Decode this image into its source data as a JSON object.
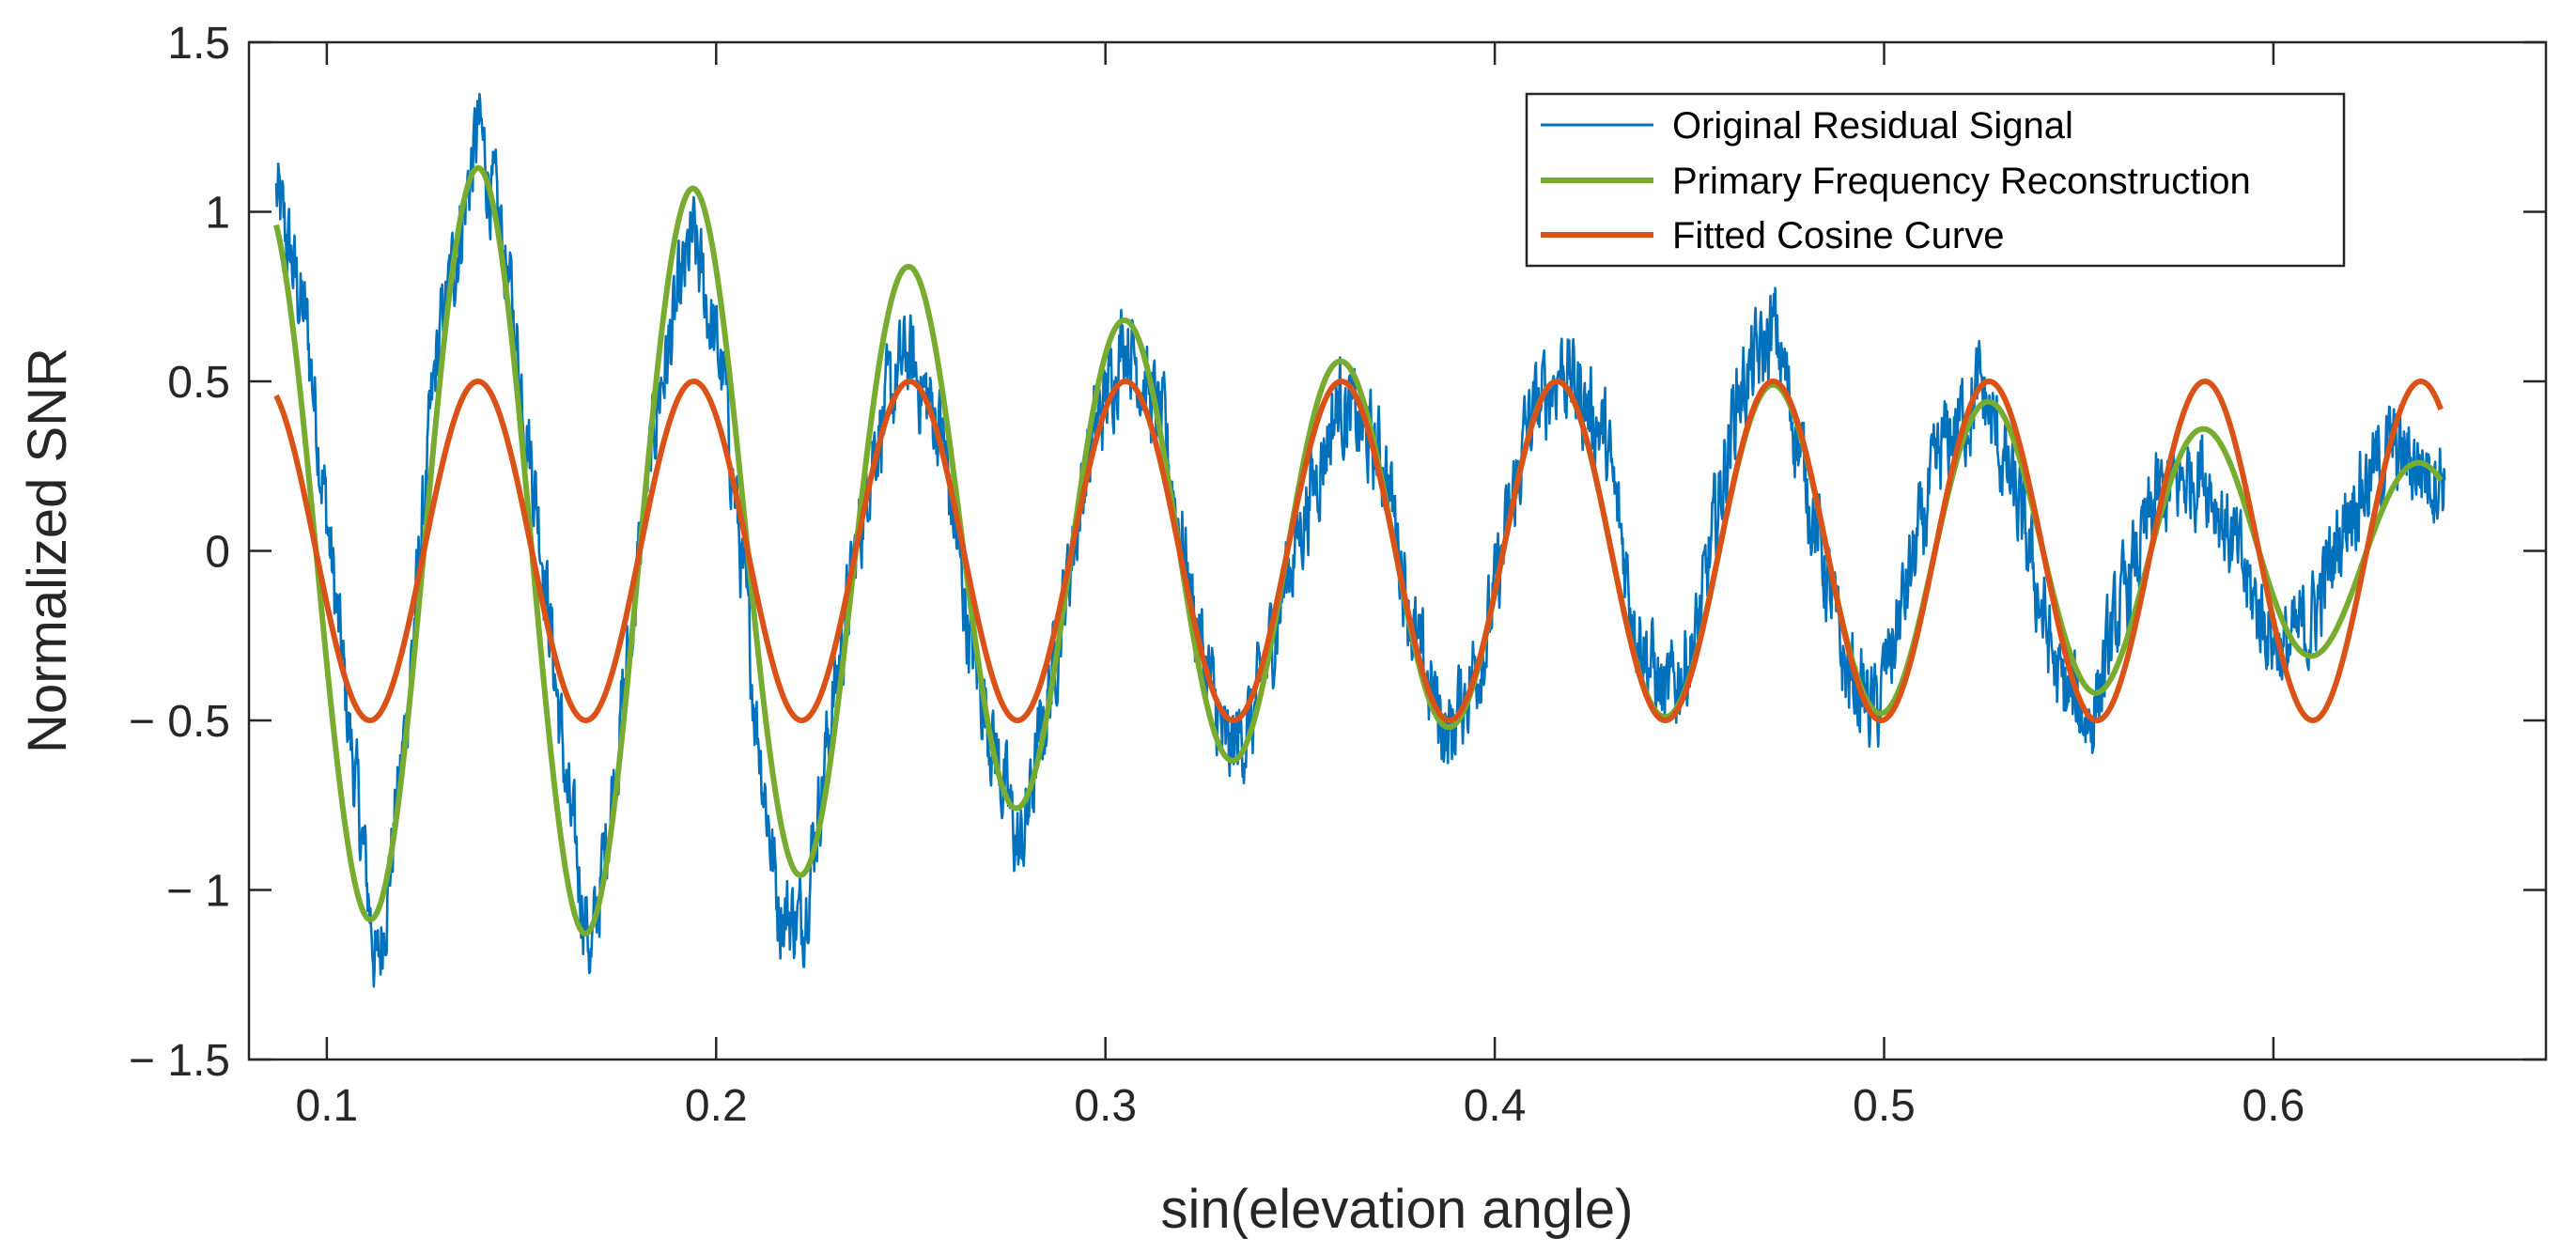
{
  "chart_data": {
    "type": "line",
    "title": "",
    "xlabel": "sin(elevation angle)",
    "ylabel": "Normalized SNR",
    "xlim": [
      0.08,
      0.67
    ],
    "ylim": [
      -1.5,
      1.5
    ],
    "xticks": [
      0.1,
      0.2,
      0.3,
      0.4,
      0.5,
      0.6
    ],
    "xtick_labels": [
      "0.1",
      "0.2",
      "0.3",
      "0.4",
      "0.5",
      "0.6"
    ],
    "yticks": [
      -1.5,
      -1,
      -0.5,
      0,
      0.5,
      1,
      1.5
    ],
    "ytick_labels": [
      "− 1.5",
      "− 1",
      "− 0.5",
      "0",
      "0.5",
      "1",
      "1.5"
    ],
    "grid": false,
    "legend_position": "top-right",
    "colors": {
      "original": "#0072BD",
      "primary": "#77AC30",
      "fitted": "#D95319",
      "axis": "#262626"
    },
    "series": [
      {
        "name": "Original Residual Signal",
        "style": "noisy",
        "x": [
          0.087,
          0.095,
          0.105,
          0.113,
          0.12,
          0.128,
          0.139,
          0.146,
          0.155,
          0.162,
          0.168,
          0.175,
          0.185,
          0.194,
          0.202,
          0.21,
          0.216,
          0.222,
          0.23,
          0.24,
          0.249,
          0.258,
          0.265,
          0.272,
          0.278,
          0.285,
          0.295,
          0.305,
          0.315,
          0.323,
          0.331,
          0.338,
          0.347,
          0.36,
          0.372,
          0.38,
          0.388,
          0.398,
          0.408,
          0.417,
          0.428,
          0.436,
          0.444,
          0.452,
          0.462,
          0.472,
          0.482,
          0.49,
          0.498,
          0.506,
          0.515,
          0.525,
          0.535,
          0.545,
          0.553,
          0.56,
          0.57,
          0.582,
          0.595,
          0.603,
          0.61,
          0.62,
          0.63,
          0.638,
          0.644
        ],
        "values": [
          1.05,
          0.65,
          -0.45,
          -1.25,
          -0.55,
          0.55,
          1.25,
          0.85,
          0.05,
          -0.75,
          -1.2,
          -0.55,
          0.45,
          0.92,
          0.5,
          -0.45,
          -1.05,
          -1.1,
          -0.45,
          0.3,
          0.58,
          0.35,
          -0.25,
          -0.6,
          -0.9,
          -0.45,
          0.25,
          0.65,
          0.35,
          -0.2,
          -0.6,
          -0.5,
          -0.05,
          0.45,
          0.25,
          -0.3,
          -0.55,
          -0.25,
          0.35,
          0.55,
          0.35,
          -0.2,
          -0.45,
          -0.25,
          0.45,
          0.65,
          0.1,
          -0.35,
          -0.48,
          -0.1,
          0.3,
          0.48,
          0.1,
          -0.4,
          -0.5,
          -0.2,
          0.15,
          0.25,
          -0.15,
          -0.3,
          -0.2,
          0.15,
          0.3,
          0.25,
          0.22
        ]
      },
      {
        "name": "Primary Frequency Reconstruction",
        "style": "cosine",
        "x_start": 0.087,
        "x_end": 0.643,
        "period": 0.05545,
        "phase_x": 0.1388,
        "offset": 0.0,
        "amplitude_x": [
          0.087,
          0.113,
          0.139,
          0.166,
          0.194,
          0.221,
          0.249,
          0.277,
          0.305,
          0.332,
          0.36,
          0.388,
          0.416,
          0.443,
          0.471,
          0.499,
          0.527,
          0.554,
          0.582,
          0.61,
          0.643
        ],
        "amplitude": [
          1.05,
          1.09,
          1.13,
          1.13,
          1.07,
          0.96,
          0.84,
          0.76,
          0.68,
          0.62,
          0.56,
          0.52,
          0.5,
          0.49,
          0.49,
          0.48,
          0.44,
          0.42,
          0.36,
          0.31,
          0.25
        ]
      },
      {
        "name": "Fitted Cosine Curve",
        "style": "cosine",
        "x_start": 0.087,
        "x_end": 0.643,
        "period": 0.05545,
        "phase_x": 0.1388,
        "offset": 0.0,
        "amplitude_x": [
          0.087,
          0.643
        ],
        "amplitude": [
          0.5,
          0.5
        ]
      }
    ]
  }
}
